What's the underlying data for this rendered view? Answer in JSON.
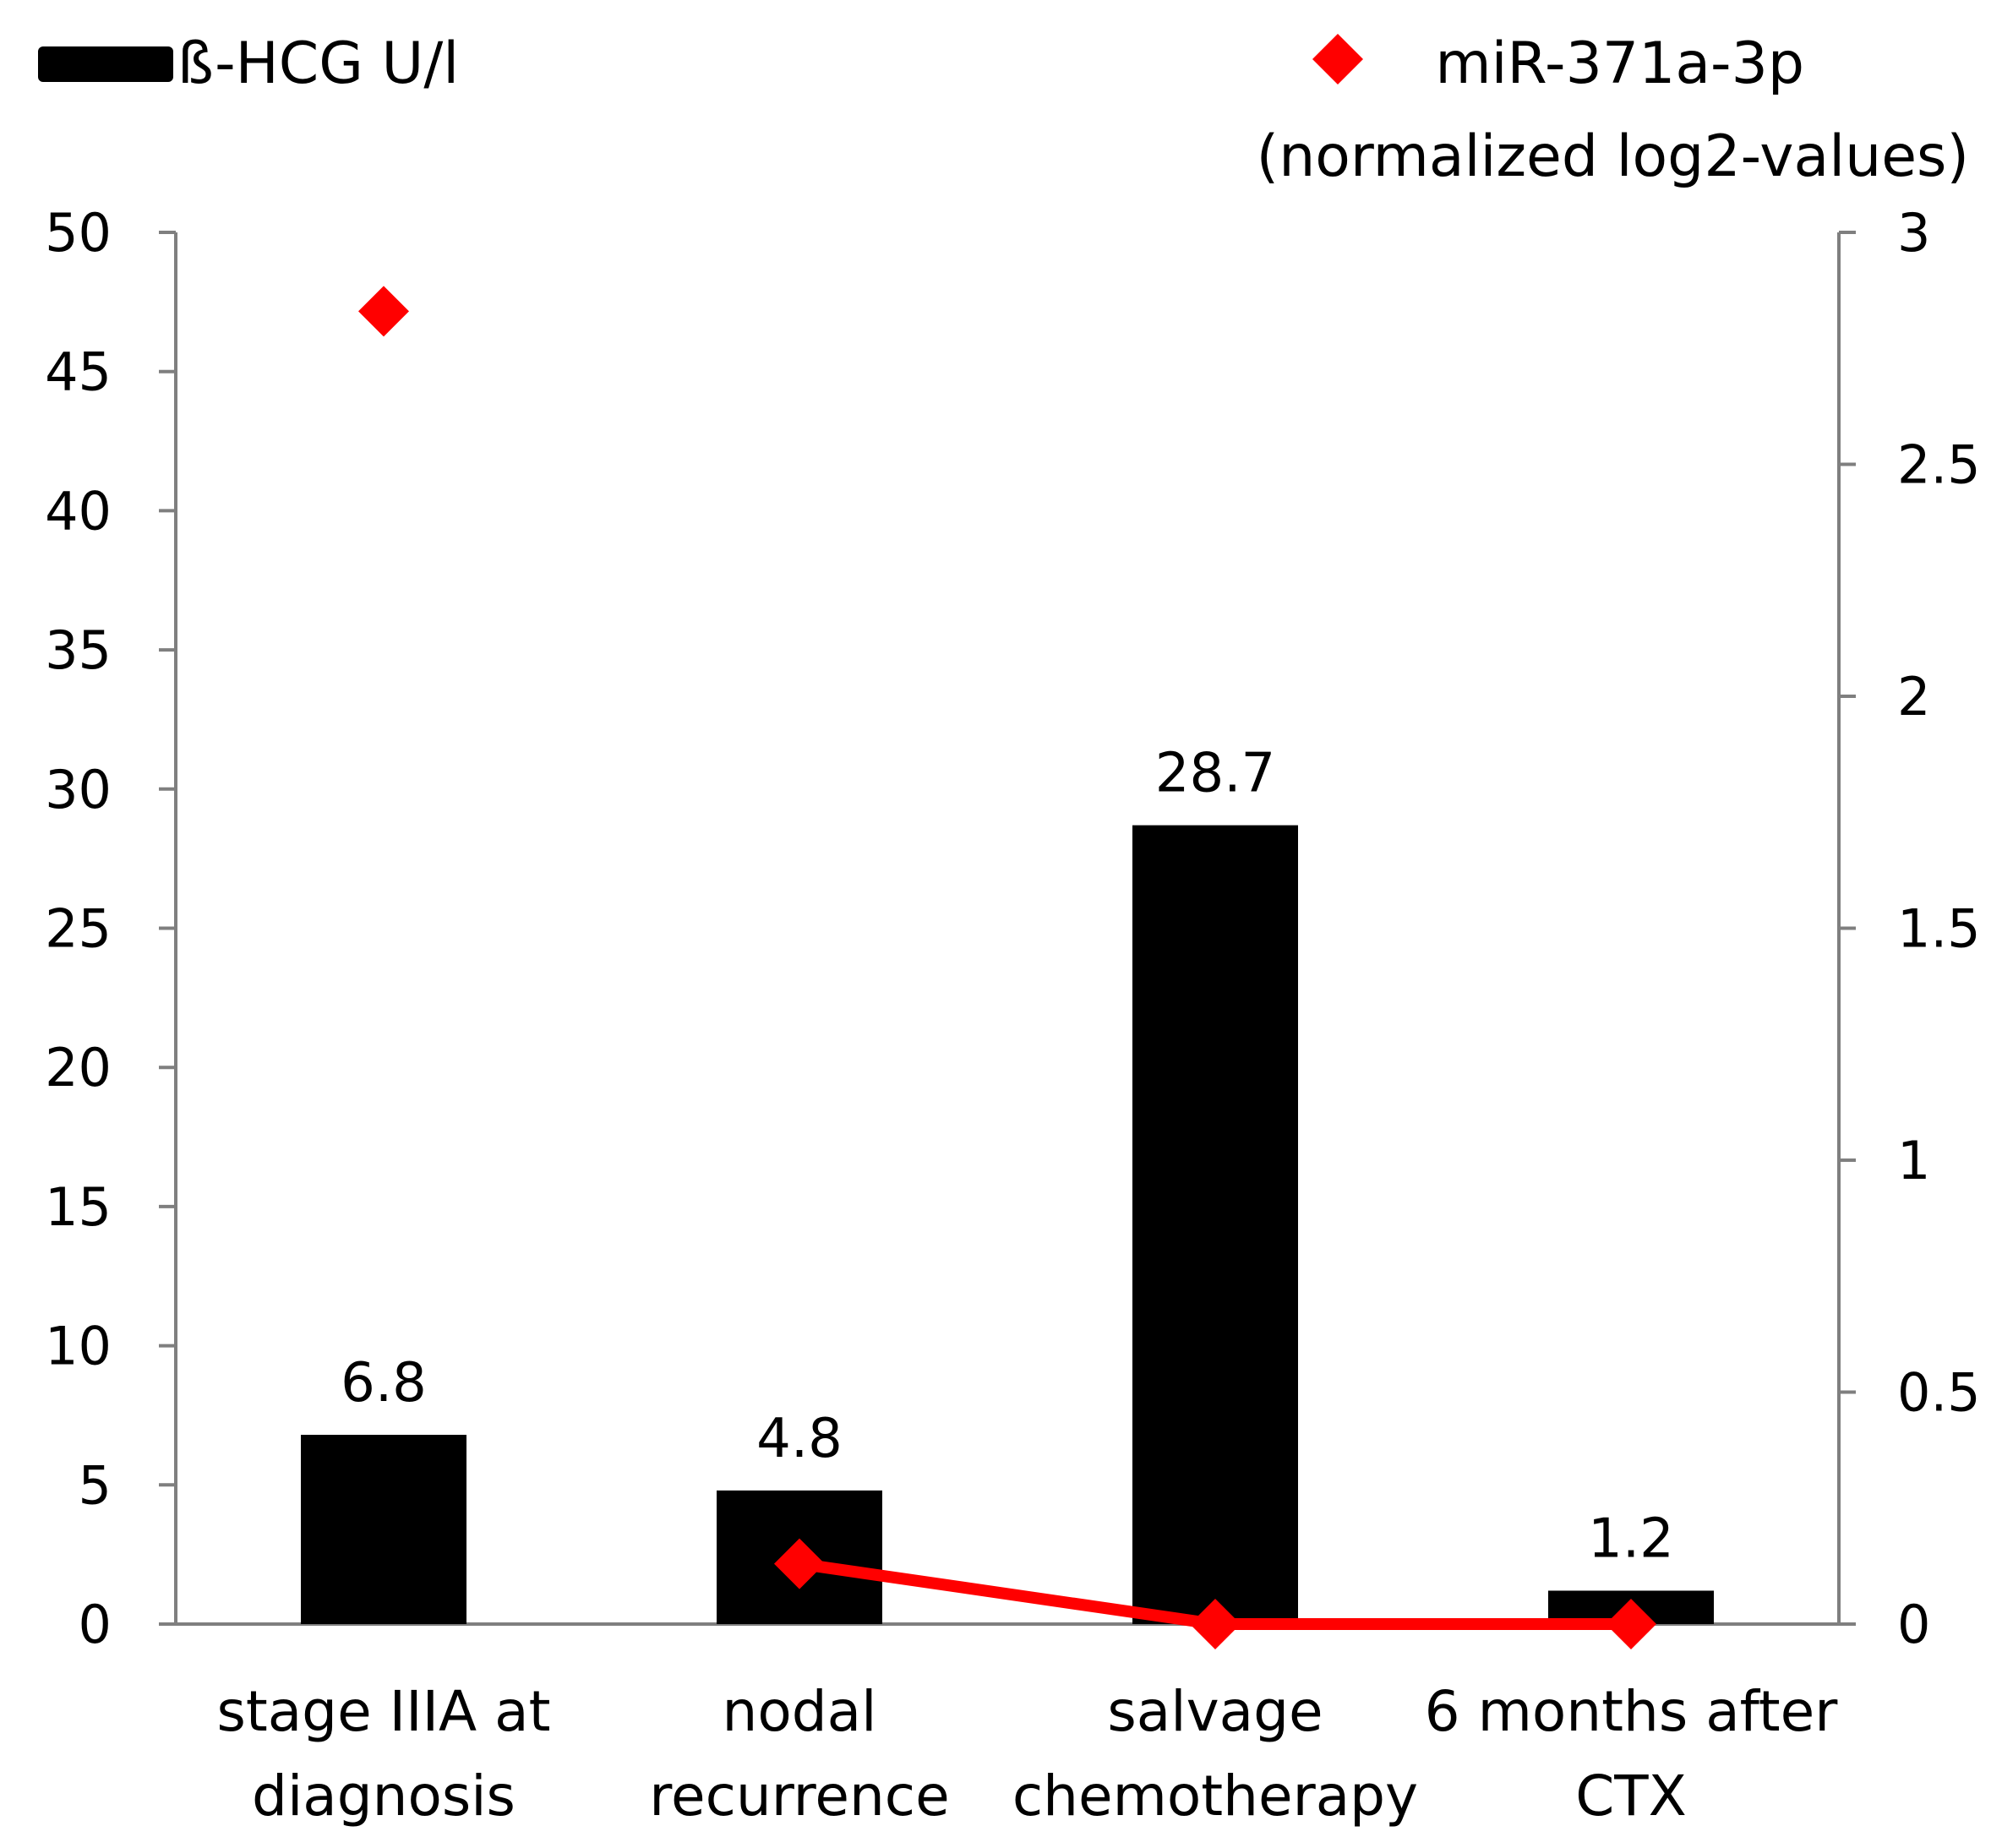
{
  "chart_data": {
    "type": "bar",
    "categories": [
      [
        "stage IIIA at",
        "diagnosis"
      ],
      [
        "nodal",
        "recurrence"
      ],
      [
        "salvage",
        "chemotherapy"
      ],
      [
        "6 months after",
        "CTX"
      ]
    ],
    "series": [
      {
        "name": "ß-HCG U/l",
        "type": "bar",
        "axis": "left",
        "color": "#000000",
        "values": [
          6.8,
          4.8,
          28.7,
          1.2
        ],
        "data_labels": [
          "6.8",
          "4.8",
          "28.7",
          "1.2"
        ]
      },
      {
        "name": "miR-371a-3p",
        "name_line2": "(normalized log2-values)",
        "type": "line",
        "marker": "diamond",
        "axis": "right",
        "color": "#ff0000",
        "values": [
          2.83,
          0.13,
          0.0,
          0.0
        ],
        "connected_from_index": 1
      }
    ],
    "left_axis": {
      "ylim": [
        0,
        50
      ],
      "ticks": [
        "0",
        "5",
        "10",
        "15",
        "20",
        "25",
        "30",
        "35",
        "40",
        "45",
        "50"
      ]
    },
    "right_axis": {
      "ylim": [
        0,
        3
      ],
      "ticks": [
        "0",
        "0.5",
        "1",
        "1.5",
        "2",
        "2.5",
        "3"
      ]
    },
    "grid": false,
    "legend": "top"
  }
}
